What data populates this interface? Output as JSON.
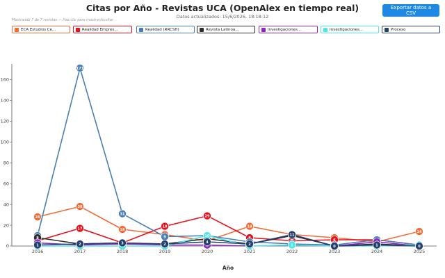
{
  "header": {
    "title": "Citas por Año - Revistas UCA (OpenAlex en tiempo real)",
    "subtitle": "Datos actualizados: 15/6/2026, 18:18:12",
    "export_label": "Exportar datos a CSV",
    "hint": "Mostrando 7 de 7 revistas — Haz clic para mostrar/ocultar"
  },
  "legend": [
    {
      "label": "ECA Estudios Ce...",
      "color": "#f26b38"
    },
    {
      "label": "Realidad Empres...",
      "color": "#e8101c"
    },
    {
      "label": "Realidad (RRCSH)",
      "color": "#4a7fb5"
    },
    {
      "label": "Revista Latinoa...",
      "color": "#2b2b2b"
    },
    {
      "label": "Investigaciones...",
      "color": "#8e24c0"
    },
    {
      "label": "Investigaciones...",
      "color": "#4ee6e6"
    },
    {
      "label": "Proceso",
      "color": "#24406e"
    }
  ],
  "chart_data": {
    "type": "line",
    "title": "Citas por Año - Revistas UCA (OpenAlex en tiempo real)",
    "xlabel": "Año",
    "ylabel": "",
    "x": [
      "2016",
      "2017",
      "2018",
      "2019",
      "2020",
      "2021",
      "2022",
      "2023",
      "2024",
      "2025"
    ],
    "ylim": [
      0,
      175
    ],
    "yticks": [
      0,
      20,
      40,
      60,
      80,
      100,
      120,
      140,
      160
    ],
    "grid": false,
    "series": [
      {
        "name": "ECA Estudios Ce...",
        "color": "#f26b38",
        "values": [
          28,
          38,
          16,
          11,
          5,
          19,
          11,
          8,
          4,
          14
        ]
      },
      {
        "name": "Realidad Empres...",
        "color": "#e8101c",
        "values": [
          5,
          17,
          3,
          19,
          29,
          8,
          5,
          6,
          6,
          1
        ]
      },
      {
        "name": "Realidad (RRCSH)",
        "color": "#4a7fb5",
        "values": [
          10,
          171,
          31,
          9,
          10,
          4,
          2,
          1,
          6,
          1
        ]
      },
      {
        "name": "Revista Latinoa...",
        "color": "#2b2b2b",
        "values": [
          8,
          2,
          3,
          2,
          7,
          2,
          10,
          0,
          2,
          0
        ]
      },
      {
        "name": "Investigaciones...",
        "color": "#8e24c0",
        "values": [
          3,
          1,
          2,
          1,
          1,
          0,
          1,
          0,
          4,
          0
        ]
      },
      {
        "name": "Investigaciones...",
        "color": "#4ee6e6",
        "values": [
          0,
          0,
          0,
          0,
          10,
          0,
          1,
          0,
          0,
          1
        ]
      },
      {
        "name": "Proceso",
        "color": "#24406e",
        "values": [
          1,
          2,
          3,
          2,
          4,
          2,
          11,
          0,
          1,
          0
        ]
      }
    ]
  }
}
